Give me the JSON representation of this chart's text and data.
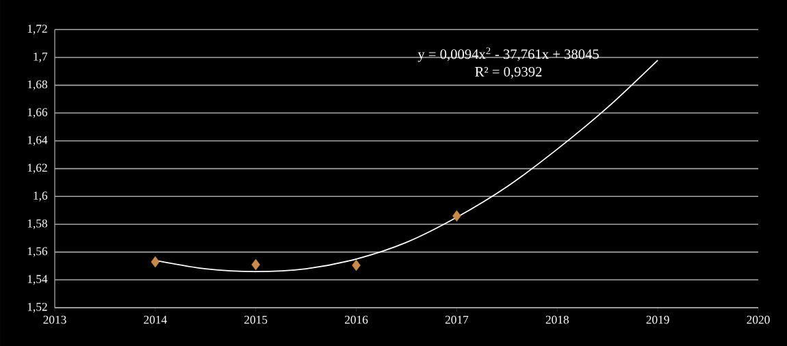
{
  "chart_data": {
    "type": "scatter",
    "marker": "diamond",
    "grid": "y",
    "xlim": [
      2013,
      2020
    ],
    "xticks": [
      2013,
      2014,
      2015,
      2016,
      2017,
      2018,
      2019,
      2020
    ],
    "ylim": [
      1.52,
      1.72
    ],
    "yticks": [
      {
        "value": 1.52,
        "label": "1,52"
      },
      {
        "value": 1.54,
        "label": "1,54"
      },
      {
        "value": 1.56,
        "label": "1,56"
      },
      {
        "value": 1.58,
        "label": "1,58"
      },
      {
        "value": 1.6,
        "label": "1,6"
      },
      {
        "value": 1.62,
        "label": "1,62"
      },
      {
        "value": 1.64,
        "label": "1,64"
      },
      {
        "value": 1.66,
        "label": "1,66"
      },
      {
        "value": 1.68,
        "label": "1,68"
      },
      {
        "value": 1.7,
        "label": "1,7"
      },
      {
        "value": 1.72,
        "label": "1,72"
      }
    ],
    "series": [
      {
        "color": "#c8894a",
        "x": [
          2014,
          2015,
          2016,
          2017
        ],
        "values": [
          1.553,
          1.551,
          1.5505,
          1.586
        ]
      },
      {
        "type": "line",
        "color": "#ffffff",
        "line_style": "solid",
        "marker": "none",
        "x": [
          2014,
          2014.5,
          2015,
          2015.5,
          2016,
          2016.5,
          2017,
          2017.5,
          2018,
          2018.5,
          2019
        ],
        "values": [
          1.554,
          1.548,
          1.546,
          1.548,
          1.555,
          1.567,
          1.585,
          1.607,
          1.634,
          1.664,
          1.698
        ]
      }
    ],
    "annotations": [
      "y = 0,0094x$^{2}$ - 37,761x + 38045",
      "R² = 0,9392"
    ]
  }
}
